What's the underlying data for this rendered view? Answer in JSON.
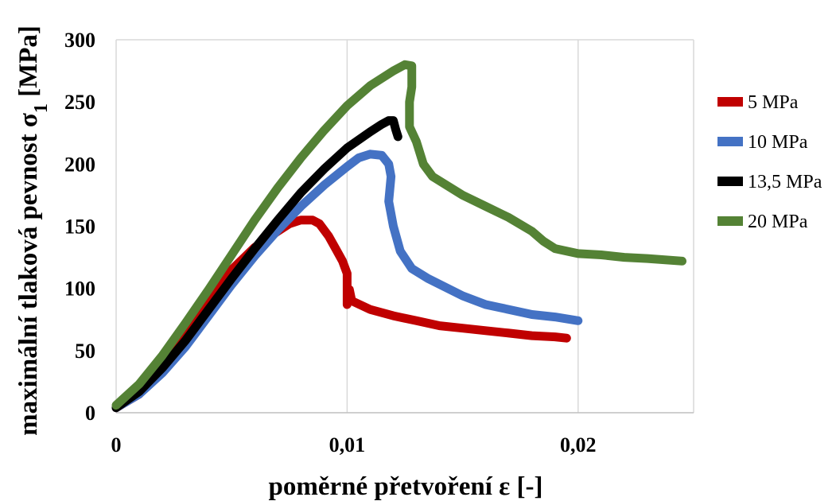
{
  "chart_data": {
    "type": "line",
    "title": "",
    "xlabel": "poměrné přetvoření ε [-]",
    "ylabel_prefix": "maximální tlaková pevnost σ",
    "ylabel_sub": "1",
    "ylabel_suffix": " [MPa]",
    "xlim": [
      0,
      0.025
    ],
    "ylim": [
      0,
      300
    ],
    "x_ticks": [
      0,
      0.01,
      0.02
    ],
    "x_tick_labels": [
      "0",
      "0,01",
      "0,02"
    ],
    "y_ticks": [
      0,
      50,
      100,
      150,
      200,
      250,
      300
    ],
    "y_tick_labels": [
      "0",
      "50",
      "100",
      "150",
      "200",
      "250",
      "300"
    ],
    "grid": "vertical",
    "legend_position": "right",
    "series": [
      {
        "name": "5 MPa",
        "color": "#c00000",
        "points": [
          [
            0,
            4
          ],
          [
            0.001,
            15
          ],
          [
            0.002,
            37
          ],
          [
            0.003,
            63
          ],
          [
            0.004,
            90
          ],
          [
            0.005,
            115
          ],
          [
            0.006,
            133
          ],
          [
            0.007,
            146
          ],
          [
            0.0075,
            152
          ],
          [
            0.008,
            155
          ],
          [
            0.0085,
            155
          ],
          [
            0.0088,
            152
          ],
          [
            0.0092,
            142
          ],
          [
            0.0095,
            132
          ],
          [
            0.0098,
            122
          ],
          [
            0.01,
            112
          ],
          [
            0.01,
            87
          ],
          [
            0.0101,
            99
          ],
          [
            0.0102,
            90
          ],
          [
            0.011,
            83
          ],
          [
            0.012,
            78
          ],
          [
            0.013,
            74
          ],
          [
            0.014,
            70
          ],
          [
            0.015,
            68
          ],
          [
            0.016,
            66
          ],
          [
            0.017,
            64
          ],
          [
            0.018,
            62
          ],
          [
            0.019,
            61
          ],
          [
            0.0195,
            60
          ]
        ]
      },
      {
        "name": "10 MPa",
        "color": "#4472c4",
        "points": [
          [
            0,
            4
          ],
          [
            0.001,
            15
          ],
          [
            0.002,
            32
          ],
          [
            0.003,
            53
          ],
          [
            0.004,
            78
          ],
          [
            0.005,
            103
          ],
          [
            0.006,
            126
          ],
          [
            0.007,
            147
          ],
          [
            0.008,
            166
          ],
          [
            0.009,
            183
          ],
          [
            0.01,
            198
          ],
          [
            0.0105,
            205
          ],
          [
            0.011,
            208
          ],
          [
            0.0115,
            207
          ],
          [
            0.0118,
            200
          ],
          [
            0.0119,
            190
          ],
          [
            0.0118,
            170
          ],
          [
            0.012,
            150
          ],
          [
            0.0123,
            130
          ],
          [
            0.0128,
            116
          ],
          [
            0.0135,
            108
          ],
          [
            0.015,
            94
          ],
          [
            0.016,
            87
          ],
          [
            0.017,
            83
          ],
          [
            0.018,
            79
          ],
          [
            0.019,
            77
          ],
          [
            0.02,
            74
          ]
        ]
      },
      {
        "name": "13,5 MPa",
        "color": "#000000",
        "points": [
          [
            0,
            4
          ],
          [
            0.001,
            17
          ],
          [
            0.002,
            36
          ],
          [
            0.003,
            58
          ],
          [
            0.004,
            83
          ],
          [
            0.005,
            108
          ],
          [
            0.006,
            132
          ],
          [
            0.007,
            155
          ],
          [
            0.008,
            177
          ],
          [
            0.009,
            196
          ],
          [
            0.01,
            213
          ],
          [
            0.011,
            226
          ],
          [
            0.0115,
            232
          ],
          [
            0.0118,
            235
          ],
          [
            0.012,
            235
          ],
          [
            0.0121,
            228
          ],
          [
            0.0122,
            222
          ]
        ]
      },
      {
        "name": "20 MPa",
        "color": "#548235",
        "points": [
          [
            0,
            6
          ],
          [
            0.001,
            23
          ],
          [
            0.002,
            46
          ],
          [
            0.003,
            72
          ],
          [
            0.004,
            99
          ],
          [
            0.005,
            127
          ],
          [
            0.006,
            155
          ],
          [
            0.007,
            181
          ],
          [
            0.008,
            205
          ],
          [
            0.009,
            227
          ],
          [
            0.01,
            247
          ],
          [
            0.011,
            263
          ],
          [
            0.012,
            275
          ],
          [
            0.0125,
            280
          ],
          [
            0.0128,
            279
          ],
          [
            0.0128,
            262
          ],
          [
            0.0127,
            250
          ],
          [
            0.0127,
            230
          ],
          [
            0.013,
            218
          ],
          [
            0.0133,
            200
          ],
          [
            0.0137,
            190
          ],
          [
            0.015,
            175
          ],
          [
            0.016,
            166
          ],
          [
            0.017,
            157
          ],
          [
            0.018,
            146
          ],
          [
            0.0185,
            138
          ],
          [
            0.019,
            132
          ],
          [
            0.02,
            128
          ],
          [
            0.021,
            127
          ],
          [
            0.022,
            125
          ],
          [
            0.023,
            124
          ],
          [
            0.0245,
            122
          ]
        ]
      }
    ]
  }
}
